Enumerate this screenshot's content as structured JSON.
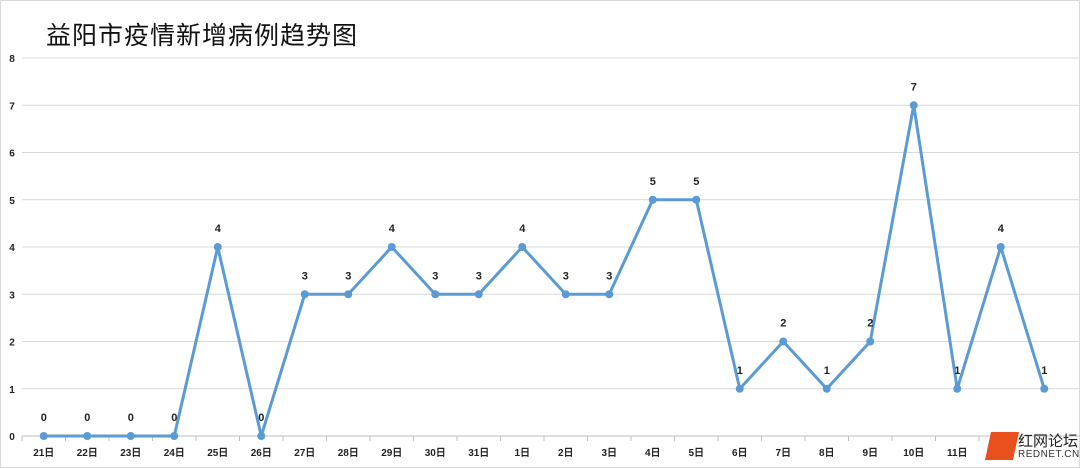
{
  "chart_data": {
    "type": "line",
    "title": "益阳市疫情新增病例趋势图",
    "categories": [
      "21日",
      "22日",
      "23日",
      "24日",
      "25日",
      "26日",
      "27日",
      "28日",
      "29日",
      "30日",
      "31日",
      "1日",
      "2日",
      "3日",
      "4日",
      "5日",
      "6日",
      "7日",
      "8日",
      "9日",
      "10日",
      "11日",
      "",
      ""
    ],
    "values": [
      0,
      0,
      0,
      0,
      4,
      0,
      3,
      3,
      4,
      3,
      3,
      4,
      3,
      3,
      5,
      5,
      1,
      2,
      1,
      2,
      7,
      1,
      4,
      1
    ],
    "ylim": [
      0,
      8
    ],
    "yticks": [
      0,
      1,
      2,
      3,
      4,
      5,
      6,
      7,
      8
    ],
    "grid": true,
    "data_labels": true,
    "xlabel": "",
    "ylabel": "",
    "line_color": "#5b9bd5",
    "grid_color": "#d9d9d9"
  },
  "watermark": {
    "cn": "红网论坛",
    "en": "REDNET.CN"
  }
}
